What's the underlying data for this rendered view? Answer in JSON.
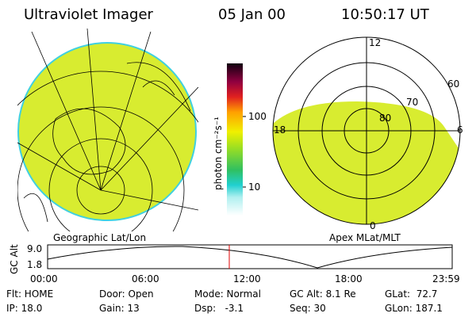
{
  "header": {
    "title": "Ultraviolet Imager",
    "date": "05 Jan 00",
    "time": "10:50:17 UT"
  },
  "colorbar": {
    "label": "photon cm⁻²s⁻¹",
    "ticks": [
      "100",
      "10"
    ]
  },
  "left_panel": {
    "label": "Geographic Lat/Lon"
  },
  "right_panel": {
    "label": "Apex MLat/MLT",
    "mlt_labels": [
      "12",
      "18",
      "6",
      "0"
    ],
    "lat_labels": [
      "60",
      "70",
      "80"
    ]
  },
  "altitude_plot": {
    "axis_label": "GC Alt",
    "y_labels": [
      "9.0",
      "1.8"
    ],
    "x_labels": [
      "00:00",
      "06:00",
      "12:00",
      "18:00",
      "23:59"
    ]
  },
  "info": [
    [
      "Flt: HOME",
      "IP: 18.0"
    ],
    [
      "Door: Open",
      "Gain: 13"
    ],
    [
      "Mode: Normal",
      "Dsp:   -3.1"
    ],
    [
      "GC Alt: 8.1 Re",
      "Seq: 30"
    ],
    [
      "GLat:  72.7",
      "GLon: 187.1"
    ]
  ]
}
